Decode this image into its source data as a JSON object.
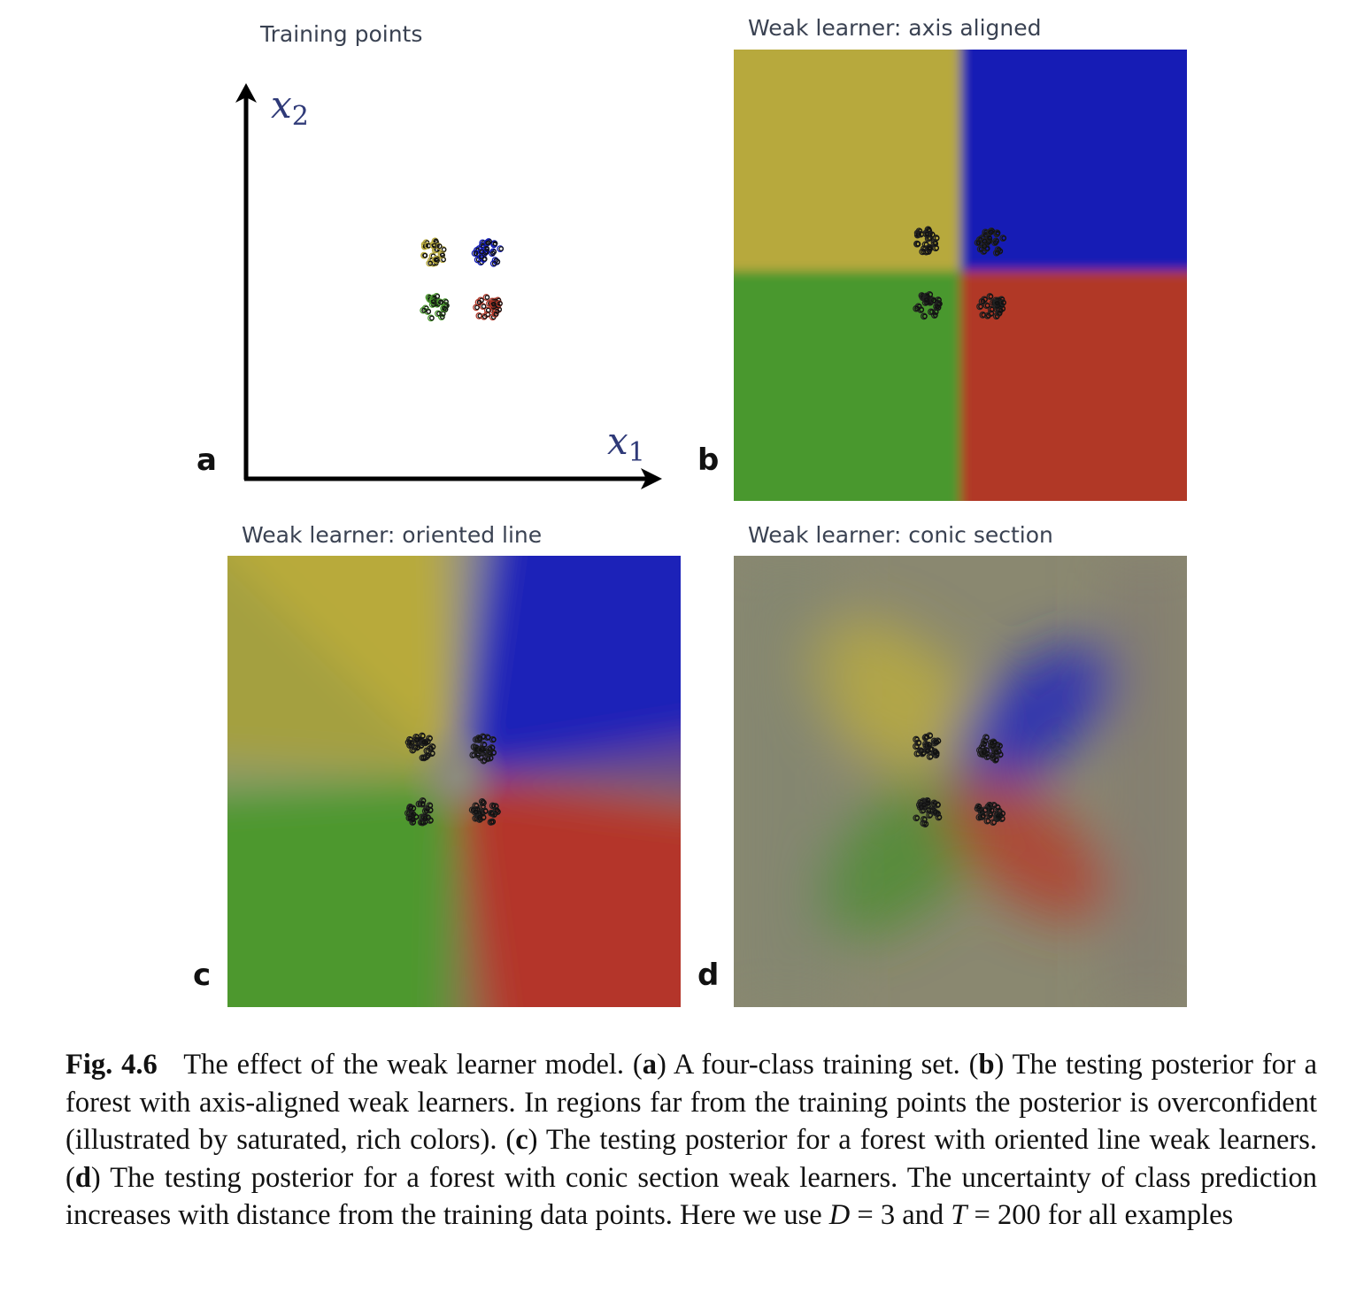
{
  "panels": {
    "a": {
      "letter": "a",
      "title": "Training points",
      "x_axis_label": "x",
      "x_axis_sub": "1",
      "y_axis_label": "x",
      "y_axis_sub": "2"
    },
    "b": {
      "letter": "b",
      "title": "Weak learner: axis aligned"
    },
    "c": {
      "letter": "c",
      "title": "Weak learner: oriented line"
    },
    "d": {
      "letter": "d",
      "title": "Weak learner: conic section"
    }
  },
  "class_colors": {
    "yellow": "#b7a93c",
    "blue": "#121bb5",
    "green": "#4a982e",
    "red": "#b13728"
  },
  "caption": {
    "label": "Fig. 4.6",
    "text_1": "The effect of the weak learner model. (",
    "a": "a",
    "text_2": ") A four-class training set. (",
    "b": "b",
    "text_3": ") The testing posterior for a forest with axis-aligned weak learners. In regions far from the training points the posterior is overconfident (illustrated by saturated, rich colors). (",
    "c": "c",
    "text_4": ") The testing posterior for a forest with oriented line weak learners. (",
    "d": "d",
    "text_5": ") The testing posterior for a forest with conic section weak learners. The uncertainty of class prediction increases with distance from the training data points. Here we use ",
    "D": "D",
    "eq_1": " = 3 and ",
    "T": "T",
    "eq_2": " = 200 for all examples"
  }
}
